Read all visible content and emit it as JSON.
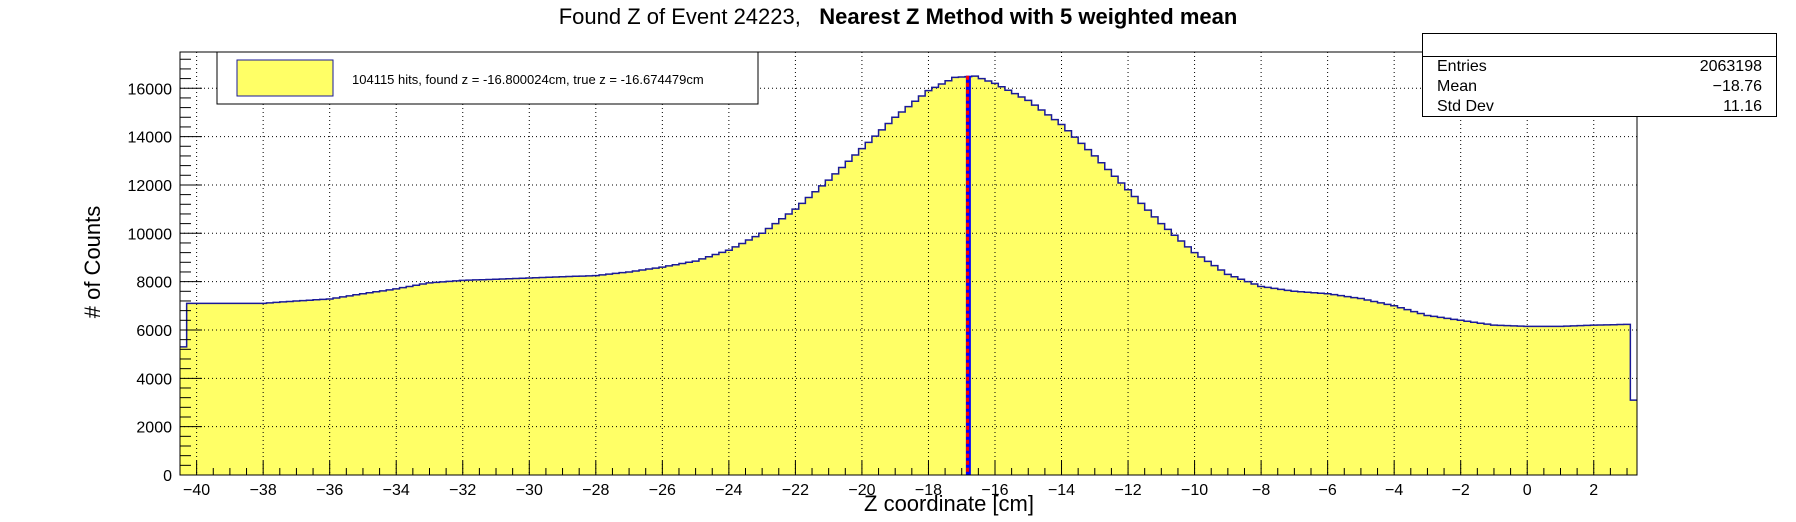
{
  "title": {
    "normal": "Found Z of Event 24223,",
    "bold": "Nearest Z Method with 5 weighted mean"
  },
  "stats_box": {
    "rows": [
      {
        "label": "Entries",
        "value": "2063198"
      },
      {
        "label": "Mean",
        "value": "−18.76"
      },
      {
        "label": "Std Dev",
        "value": "11.16"
      }
    ]
  },
  "legend": {
    "entry": "104115 hits, found z = -16.800024cm, true z = -16.674479cm"
  },
  "colors": {
    "fill": "#ffff66",
    "histogram_line": "#1a1a99",
    "found_line": "#0000ff",
    "true_line": "#ff0000",
    "grid": "#000000"
  },
  "chart_data": {
    "type": "histogram",
    "xlabel": "Z coordinate [cm]",
    "ylabel": "# of Counts",
    "xlim": [
      -40.5,
      3.3
    ],
    "ylim": [
      0,
      17500
    ],
    "x_ticks": [
      -40,
      -38,
      -36,
      -34,
      -32,
      -30,
      -28,
      -26,
      -24,
      -22,
      -20,
      -18,
      -16,
      -14,
      -12,
      -10,
      -8,
      -6,
      -4,
      -2,
      0,
      2
    ],
    "y_ticks": [
      0,
      2000,
      4000,
      6000,
      8000,
      10000,
      12000,
      14000,
      16000
    ],
    "grid": true,
    "bin_width": 0.2,
    "profile": [
      [
        -40.5,
        3500
      ],
      [
        -40.3,
        7100
      ],
      [
        -38,
        7100
      ],
      [
        -37,
        7200
      ],
      [
        -36,
        7280
      ],
      [
        -35,
        7500
      ],
      [
        -34,
        7700
      ],
      [
        -33,
        7950
      ],
      [
        -32,
        8050
      ],
      [
        -30,
        8150
      ],
      [
        -28,
        8250
      ],
      [
        -27,
        8400
      ],
      [
        -26,
        8600
      ],
      [
        -25,
        8850
      ],
      [
        -24,
        9300
      ],
      [
        -23,
        10000
      ],
      [
        -22,
        11000
      ],
      [
        -21,
        12200
      ],
      [
        -20,
        13500
      ],
      [
        -19,
        14800
      ],
      [
        -18,
        15900
      ],
      [
        -17.2,
        16450
      ],
      [
        -16.6,
        16500
      ],
      [
        -16,
        16200
      ],
      [
        -15,
        15500
      ],
      [
        -14,
        14500
      ],
      [
        -13,
        13200
      ],
      [
        -12,
        11800
      ],
      [
        -11,
        10400
      ],
      [
        -10,
        9200
      ],
      [
        -9,
        8300
      ],
      [
        -8,
        7800
      ],
      [
        -7,
        7600
      ],
      [
        -6,
        7500
      ],
      [
        -5,
        7300
      ],
      [
        -4,
        7000
      ],
      [
        -3,
        6600
      ],
      [
        -2,
        6400
      ],
      [
        -1,
        6200
      ],
      [
        0,
        6150
      ],
      [
        1,
        6150
      ],
      [
        2,
        6200
      ],
      [
        3,
        6230
      ],
      [
        3.1,
        3100
      ],
      [
        3.3,
        3100
      ]
    ],
    "found_z": -16.800024,
    "true_z": -16.674479
  }
}
